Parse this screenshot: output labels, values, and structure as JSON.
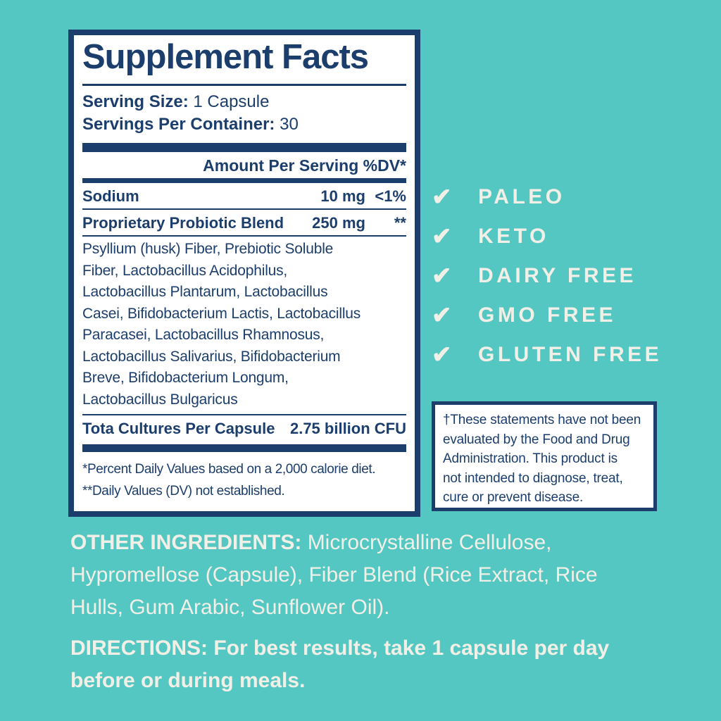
{
  "colors": {
    "background_teal": "#55c7c3",
    "navy": "#1c3e6c",
    "cream": "#f2efe6",
    "panel_white": "#ffffff"
  },
  "panel": {
    "title": "Supplement Facts",
    "serving_size_label": "Serving Size:",
    "serving_size_value": " 1 Capsule",
    "servings_per_container_label": "Servings Per Container:",
    "servings_per_container_value": " 30",
    "amount_header": "Amount Per Serving %DV*",
    "rows": [
      {
        "name": "Sodium",
        "amount": "10 mg",
        "dv": "<1%"
      },
      {
        "name": "Proprietary Probiotic Blend",
        "amount": "250 mg",
        "dv": "**"
      }
    ],
    "blend_description_lines": [
      "Psyllium (husk) Fiber, Prebiotic Soluble",
      "Fiber, Lactobacillus Acidophilus,",
      "Lactobacillus Plantarum, Lactobacillus",
      "Casei, Bifidobacterium Lactis, Lactobacillus",
      "Paracasei, Lactobacillus Rhamnosus,",
      "Lactobacillus Salivarius, Bifidobacterium",
      "Breve, Bifidobacterium Longum,",
      "Lactobacillus Bulgaricus"
    ],
    "total_cultures_label": "Tota Cultures Per Capsule",
    "total_cultures_value": "2.75 billion CFU",
    "footnote_lines": [
      "*Percent Daily Values based on a 2,000 calorie diet.",
      "**Daily Values (DV) not established."
    ]
  },
  "badges": {
    "check_glyph": "✔",
    "items": [
      {
        "icon": "check-icon",
        "label": "PALEO"
      },
      {
        "icon": "check-icon",
        "label": "KETO"
      },
      {
        "icon": "check-icon",
        "label": "DAIRY FREE"
      },
      {
        "icon": "check-icon",
        "label": "GMO FREE"
      },
      {
        "icon": "check-icon",
        "label": "GLUTEN FREE"
      }
    ]
  },
  "disclaimer": {
    "lines": [
      "†These statements have not been",
      "evaluated by the Food and Drug",
      "Administration. This product is",
      "not intended to diagnose, treat,",
      "cure or prevent disease."
    ]
  },
  "other_ingredients": {
    "label": "OTHER INGREDIENTS:",
    "line1_rest": " Microcrystalline Cellulose,",
    "rest_lines": [
      "Hypromellose (Capsule), Fiber Blend (Rice Extract, Rice",
      "Hulls, Gum Arabic, Sunflower Oil)."
    ]
  },
  "directions": {
    "label": "DIRECTIONS:",
    "line1_rest": " For best results, take 1 capsule per day",
    "rest_lines": [
      "before or during meals."
    ]
  }
}
